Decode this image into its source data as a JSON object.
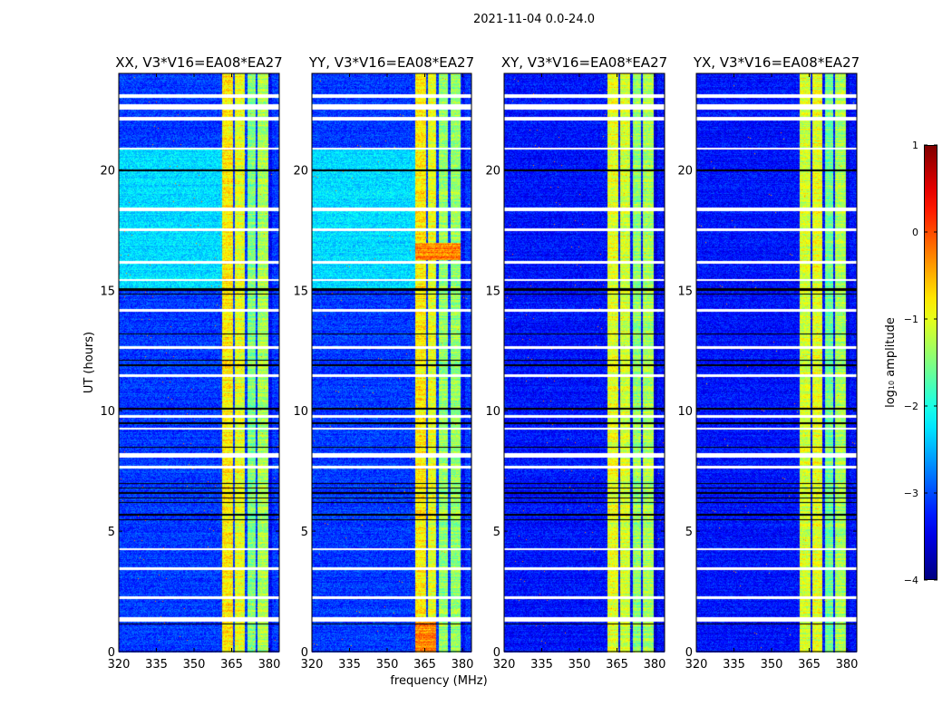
{
  "chart_data": {
    "type": "heatmap",
    "title": "2021-11-04 0.0-24.0",
    "xlabel": "frequency (MHz)",
    "ylabel": "UT (hours)",
    "xlim": [
      320,
      384
    ],
    "ylim": [
      0,
      24
    ],
    "xticks": [
      320,
      335,
      350,
      365,
      380
    ],
    "yticks": [
      0,
      5,
      10,
      15,
      20
    ],
    "colormap": "jet",
    "colorbar": {
      "label": "log10 amplitude",
      "label_main": "log",
      "label_sub": "10",
      "label_rest": " amplitude",
      "range": [
        -4,
        1
      ],
      "ticks": [
        "1",
        "0",
        "−1",
        "−2",
        "−3",
        "−4"
      ],
      "tick_values": [
        1,
        0,
        -1,
        -2,
        -3,
        -4
      ]
    },
    "flagged_hours_white": [
      [
        23.0,
        23.15
      ],
      [
        22.5,
        22.75
      ],
      [
        22.05,
        22.2
      ],
      [
        20.85,
        20.95
      ],
      [
        18.3,
        18.45
      ],
      [
        17.5,
        17.6
      ],
      [
        16.15,
        16.25
      ],
      [
        15.4,
        15.5
      ],
      [
        14.15,
        14.25
      ],
      [
        12.6,
        12.7
      ],
      [
        11.45,
        11.55
      ],
      [
        9.75,
        9.85
      ],
      [
        9.25,
        9.35
      ],
      [
        8.1,
        8.3
      ],
      [
        7.65,
        7.75
      ],
      [
        4.25,
        4.35
      ],
      [
        3.45,
        3.55
      ],
      [
        2.25,
        2.35
      ],
      [
        1.3,
        1.5
      ]
    ],
    "no_data_hours_black": [
      [
        19.95,
        20.05
      ],
      [
        15.0,
        15.1
      ],
      [
        14.85,
        14.9
      ],
      [
        13.2,
        13.25
      ],
      [
        12.1,
        12.15
      ],
      [
        11.9,
        11.95
      ],
      [
        10.1,
        10.15
      ],
      [
        9.5,
        9.55
      ],
      [
        8.5,
        8.55
      ],
      [
        7.0,
        7.05
      ],
      [
        6.8,
        6.85
      ],
      [
        6.6,
        6.65
      ],
      [
        6.4,
        6.45
      ],
      [
        6.2,
        6.25
      ],
      [
        5.7,
        5.75
      ],
      [
        5.5,
        5.55
      ],
      [
        5.0,
        5.03
      ],
      [
        1.2,
        1.23
      ]
    ],
    "panels": [
      {
        "title": "XX, V3*V16=EA08*EA27",
        "background": -3.1,
        "background_15_21h": -2.3,
        "bands": [
          {
            "f": [
              361,
              365.5
            ],
            "level": -0.8
          },
          {
            "f": [
              366,
              370
            ],
            "level": -1.0
          },
          {
            "f": [
              371,
              374.5
            ],
            "level": -1.5
          },
          {
            "f": [
              375,
              379.5
            ],
            "level": -1.3
          }
        ]
      },
      {
        "title": "YY, V3*V16=EA08*EA27",
        "background": -3.1,
        "background_15_21h": -2.3,
        "bands": [
          {
            "f": [
              361,
              365.5
            ],
            "level": -0.8
          },
          {
            "f": [
              366,
              369.5
            ],
            "level": -1.0
          },
          {
            "f": [
              370.5,
              374
            ],
            "level": -1.4
          },
          {
            "f": [
              375,
              379
            ],
            "level": -1.4
          }
        ],
        "events": [
          {
            "f": [
              361,
              369.5
            ],
            "t": [
              0,
              1.3
            ],
            "level": -0.3
          },
          {
            "f": [
              361,
              379
            ],
            "t": [
              16.3,
              17.0
            ],
            "level": -0.3
          }
        ]
      },
      {
        "title": "XY, V3*V16=EA08*EA27",
        "background": -3.3,
        "bands": [
          {
            "f": [
              361,
              365.5
            ],
            "level": -1.0
          },
          {
            "f": [
              366,
              370
            ],
            "level": -1.1
          },
          {
            "f": [
              371,
              374.5
            ],
            "level": -1.4
          },
          {
            "f": [
              375,
              379.5
            ],
            "level": -1.3
          }
        ]
      },
      {
        "title": "YX, V3*V16=EA08*EA27",
        "background": -3.3,
        "bands": [
          {
            "f": [
              361,
              365.5
            ],
            "level": -1.1
          },
          {
            "f": [
              366,
              370
            ],
            "level": -1.0
          },
          {
            "f": [
              371,
              374.5
            ],
            "level": -1.6
          },
          {
            "f": [
              375,
              379.5
            ],
            "level": -1.3
          }
        ]
      }
    ]
  }
}
